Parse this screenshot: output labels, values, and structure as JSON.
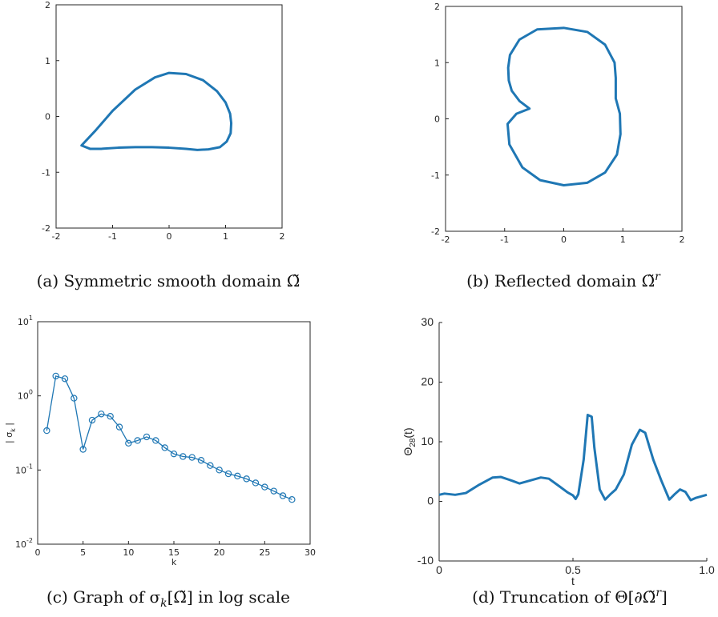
{
  "chart_data": [
    {
      "id": "a",
      "type": "line",
      "caption": "(a) Symmetric smooth domain Ω̃",
      "xlim": [
        -2,
        2
      ],
      "ylim": [
        -2,
        2
      ],
      "xticks": [
        "-2",
        "-1",
        "0",
        "1",
        "2"
      ],
      "yticks": [
        "-2",
        "-1",
        "0",
        "1",
        "2"
      ],
      "color": "#1f77b4",
      "curve": {
        "x": [
          -1.55,
          -1.3,
          -1.0,
          -0.6,
          -0.25,
          0.0,
          0.3,
          0.6,
          0.85,
          1.0,
          1.08,
          1.1,
          1.09,
          1.02,
          0.9,
          0.7,
          0.5,
          0.3,
          0.0,
          -0.3,
          -0.6,
          -0.9,
          -1.2,
          -1.4,
          -1.55
        ],
        "y": [
          -0.52,
          -0.25,
          0.1,
          0.48,
          0.7,
          0.78,
          0.76,
          0.65,
          0.45,
          0.25,
          0.05,
          -0.12,
          -0.3,
          -0.45,
          -0.55,
          -0.59,
          -0.6,
          -0.58,
          -0.56,
          -0.55,
          -0.55,
          -0.56,
          -0.58,
          -0.58,
          -0.52
        ]
      }
    },
    {
      "id": "b",
      "type": "line",
      "caption": "(b) Reflected domain Ω̃",
      "caption_sup": "r",
      "xlim": [
        -2,
        2
      ],
      "ylim": [
        -2.2,
        2.2
      ],
      "xticks": [
        "-2",
        "-1",
        "0",
        "1",
        "2"
      ],
      "yticks": [
        "-2",
        "-1",
        "0",
        "1",
        "2"
      ],
      "color": "#1f77b4",
      "curve": {
        "x": [
          -0.58,
          -0.75,
          -0.88,
          -0.93,
          -0.94,
          -0.91,
          -0.75,
          -0.45,
          0.0,
          0.4,
          0.7,
          0.86,
          0.88,
          0.88,
          0.95,
          0.96,
          0.9,
          0.7,
          0.4,
          0.0,
          -0.4,
          -0.7,
          -0.92,
          -0.95,
          -0.8,
          -0.58
        ],
        "y": [
          0.2,
          0.35,
          0.55,
          0.75,
          1.0,
          1.25,
          1.55,
          1.75,
          1.78,
          1.7,
          1.45,
          1.1,
          0.8,
          0.4,
          0.1,
          -0.3,
          -0.7,
          -1.05,
          -1.25,
          -1.3,
          -1.2,
          -0.95,
          -0.5,
          -0.1,
          0.1,
          0.2
        ]
      }
    },
    {
      "id": "c",
      "type": "line",
      "caption": "(c) Graph of σ",
      "caption_sub": "k",
      "caption_tail": "[Ω̃] in log scale",
      "xlabel": "k",
      "ylabel": "| σ",
      "ylabel_sub": "k",
      "ylabel_tail": " |",
      "xlim": [
        0,
        30
      ],
      "ylim": [
        0.01,
        10
      ],
      "yscale": "log",
      "xticks": [
        "0",
        "5",
        "10",
        "15",
        "20",
        "25",
        "30"
      ],
      "yticks": [
        {
          "base": "10",
          "exp": "-2"
        },
        {
          "base": "10",
          "exp": "-1"
        },
        {
          "base": "10",
          "exp": "0"
        },
        {
          "base": "10",
          "exp": "1"
        }
      ],
      "markers": "o",
      "color": "#1f77b4",
      "x": [
        1,
        2,
        3,
        4,
        5,
        6,
        7,
        8,
        9,
        10,
        11,
        12,
        13,
        14,
        15,
        16,
        17,
        18,
        19,
        20,
        21,
        22,
        23,
        24,
        25,
        26,
        27,
        28
      ],
      "y": [
        0.34,
        1.85,
        1.7,
        0.93,
        0.19,
        0.47,
        0.57,
        0.53,
        0.38,
        0.23,
        0.25,
        0.28,
        0.25,
        0.2,
        0.165,
        0.152,
        0.148,
        0.135,
        0.115,
        0.1,
        0.089,
        0.083,
        0.076,
        0.067,
        0.059,
        0.052,
        0.045,
        0.04
      ]
    },
    {
      "id": "d",
      "type": "line",
      "caption": "(d) Truncation of Θ[∂Ω̃",
      "caption_sup": "r",
      "caption_tail": "]",
      "xlabel": "t",
      "ylabel": "Θ",
      "ylabel_sub": "28",
      "ylabel_tail": "(t)",
      "xlim": [
        0,
        1
      ],
      "ylim": [
        -10,
        30
      ],
      "xticks": [
        "0",
        "0.5",
        "1.0"
      ],
      "yticks": [
        "-10",
        "0",
        "10",
        "20",
        "30"
      ],
      "color": "#1f77b4",
      "x": [
        0.0,
        0.02,
        0.06,
        0.1,
        0.15,
        0.2,
        0.23,
        0.27,
        0.3,
        0.34,
        0.38,
        0.41,
        0.45,
        0.48,
        0.5,
        0.51,
        0.52,
        0.54,
        0.555,
        0.57,
        0.58,
        0.6,
        0.62,
        0.64,
        0.66,
        0.69,
        0.72,
        0.75,
        0.77,
        0.8,
        0.83,
        0.86,
        0.88,
        0.9,
        0.92,
        0.94,
        0.96,
        1.0
      ],
      "y": [
        1.1,
        1.3,
        1.1,
        1.4,
        2.8,
        4.0,
        4.1,
        3.5,
        3.0,
        3.5,
        4.0,
        3.8,
        2.5,
        1.5,
        1.0,
        0.4,
        1.2,
        7.0,
        14.5,
        14.2,
        9.0,
        2.0,
        0.3,
        1.2,
        2.0,
        4.5,
        9.5,
        12.0,
        11.5,
        7.0,
        3.5,
        0.3,
        1.2,
        2.0,
        1.6,
        0.2,
        0.6,
        1.1
      ]
    }
  ]
}
